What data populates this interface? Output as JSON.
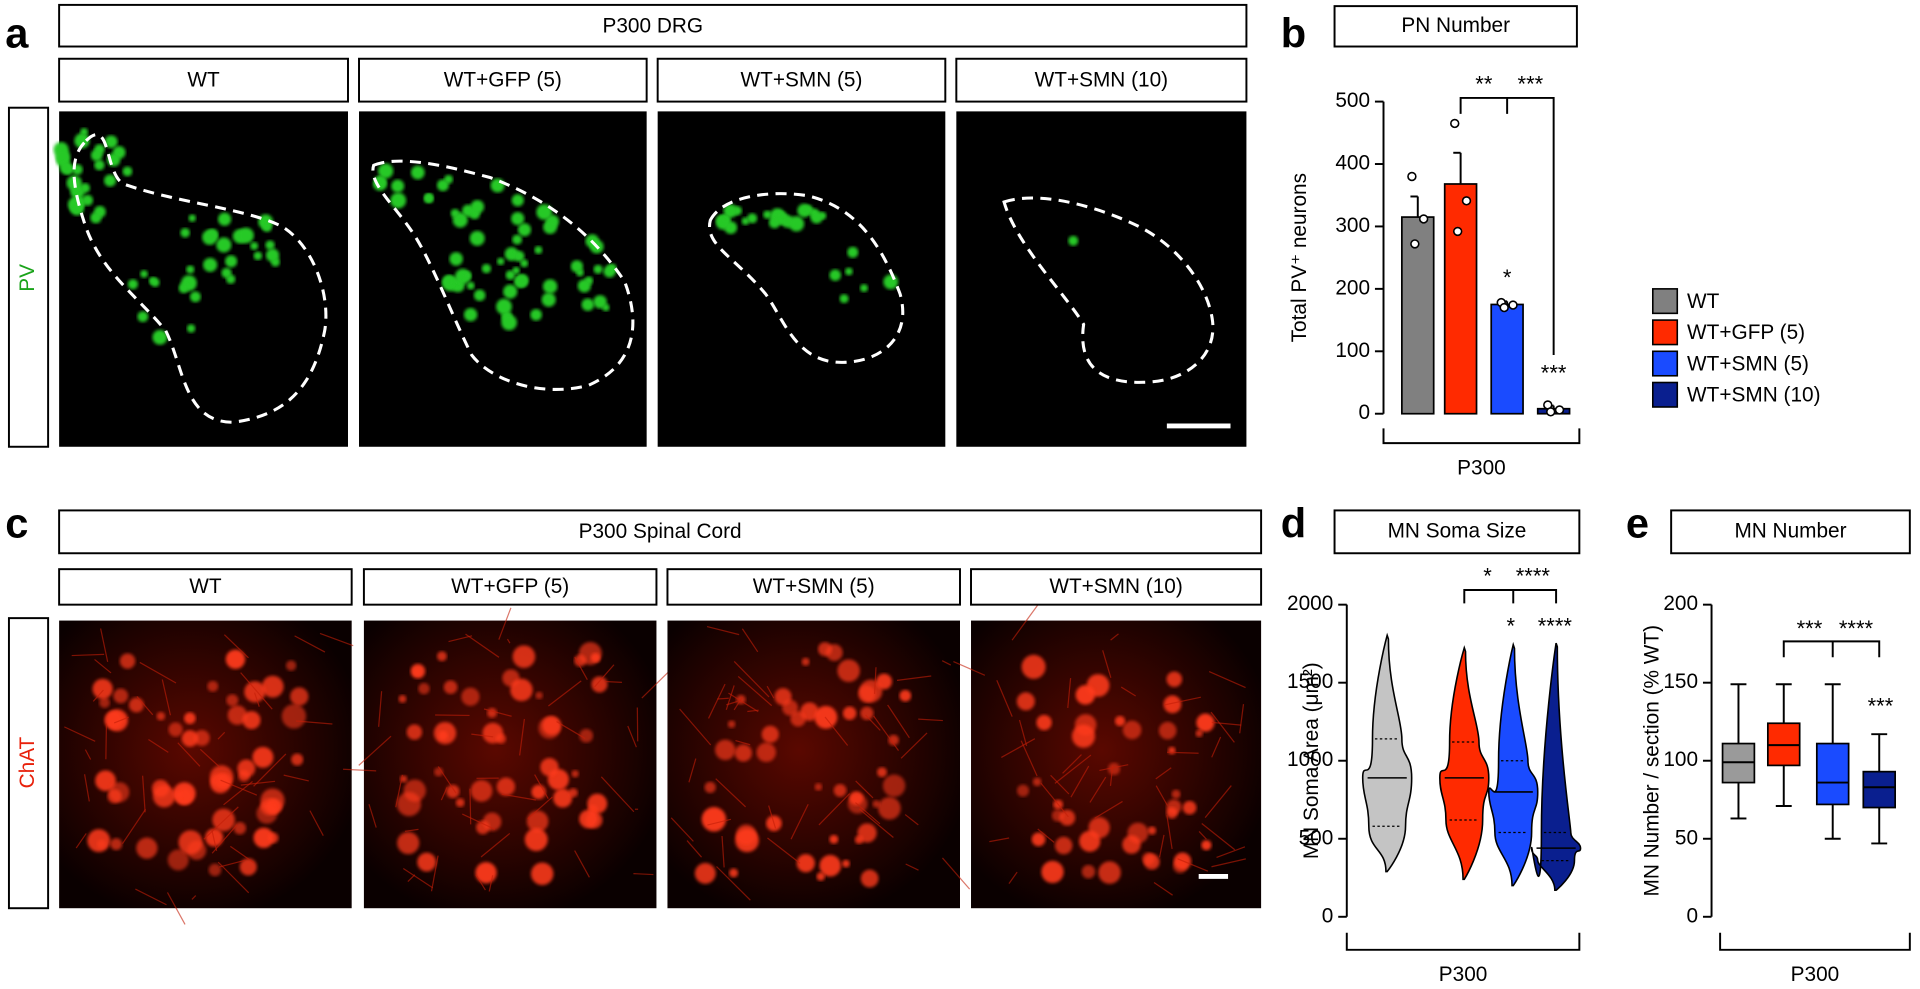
{
  "panel_a": {
    "letter": "a",
    "header": "P300 DRG",
    "columns": [
      "WT",
      "WT+GFP (5)",
      "WT+SMN (5)",
      "WT+SMN (10)"
    ],
    "row_label": "PV"
  },
  "panel_c": {
    "letter": "c",
    "header": "P300 Spinal Cord",
    "columns": [
      "WT",
      "WT+GFP (5)",
      "WT+SMN (5)",
      "WT+SMN (10)"
    ],
    "row_label": "ChAT"
  },
  "chart_data": [
    {
      "type": "bar",
      "letter": "b",
      "title": "PN Number",
      "y_label": "Total PV⁺ neurons",
      "x_label": "P300",
      "categories": [
        "WT",
        "WT+GFP (5)",
        "WT+SMN (5)",
        "WT+SMN (10)"
      ],
      "colors": [
        "#808080",
        "#ff2a00",
        "#1a4bff",
        "#0a1f8f"
      ],
      "values": [
        315,
        368,
        175,
        8
      ],
      "errors": [
        33,
        50,
        5,
        5
      ],
      "points": [
        [
          380,
          312,
          272
        ],
        [
          465,
          341,
          292
        ],
        [
          178,
          174,
          170
        ],
        [
          14,
          6,
          3
        ]
      ],
      "annotations": [
        "**",
        "***",
        "*",
        "***"
      ],
      "ylim": [
        0,
        500
      ],
      "yticks": [
        0,
        100,
        200,
        300,
        400,
        500
      ]
    },
    {
      "type": "violin",
      "letter": "d",
      "title": "MN Soma Size",
      "y_label": "MN Soma Area (μm²)",
      "x_label": "P300",
      "colors": [
        "#c4c4c4",
        "#ff2a00",
        "#1a4bff",
        "#0a1f8f"
      ],
      "min": [
        290,
        240,
        200,
        170
      ],
      "q1": [
        580,
        620,
        540,
        360
      ],
      "median": [
        890,
        890,
        800,
        440
      ],
      "q3": [
        1140,
        1120,
        1000,
        540
      ],
      "max": [
        1780,
        1700,
        1720,
        1730
      ],
      "annotations": [
        "*",
        "****",
        "*",
        "****"
      ],
      "ylim": [
        0,
        2000
      ],
      "yticks": [
        0,
        500,
        1000,
        1500,
        2000
      ]
    },
    {
      "type": "box",
      "letter": "e",
      "title": "MN Number",
      "y_label": "MN Number / section (% WT)",
      "x_label": "P300",
      "colors": [
        "#9a9a9a",
        "#ff2a00",
        "#1a4bff",
        "#0a1f8f"
      ],
      "min": [
        63,
        71,
        50,
        47
      ],
      "q1": [
        86,
        97,
        72,
        70
      ],
      "median": [
        99,
        110,
        86,
        83
      ],
      "q3": [
        111,
        124,
        111,
        93
      ],
      "max": [
        149,
        149,
        149,
        117
      ],
      "annotations": [
        "***",
        "****",
        "***"
      ],
      "ylim": [
        0,
        200
      ],
      "yticks": [
        0,
        50,
        100,
        150,
        200
      ]
    }
  ]
}
